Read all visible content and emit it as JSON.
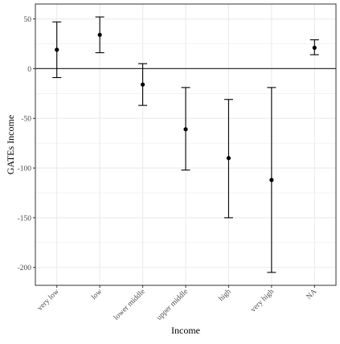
{
  "chart_data": {
    "type": "errorbar",
    "title": "",
    "xlabel": "Income",
    "ylabel": "GATEs Income",
    "categories": [
      "very low",
      "low",
      "lower middle",
      "upper middle",
      "high",
      "very high",
      "NA"
    ],
    "series": [
      {
        "estimate": [
          19,
          34,
          -16,
          -61,
          -90,
          -112,
          21
        ],
        "lower": [
          -9,
          16,
          -37,
          -102,
          -150,
          -205,
          14
        ],
        "upper": [
          47,
          52,
          5,
          -19,
          -31,
          -19,
          29
        ]
      }
    ],
    "ylim": [
      -218,
      65
    ],
    "yticks": [
      50,
      0,
      -50,
      -100,
      -150,
      -200
    ],
    "reference_line": 0,
    "grid": true,
    "colors": {
      "points": "#000000",
      "grid": "#ebebeb",
      "panel_border": "#333333"
    }
  }
}
